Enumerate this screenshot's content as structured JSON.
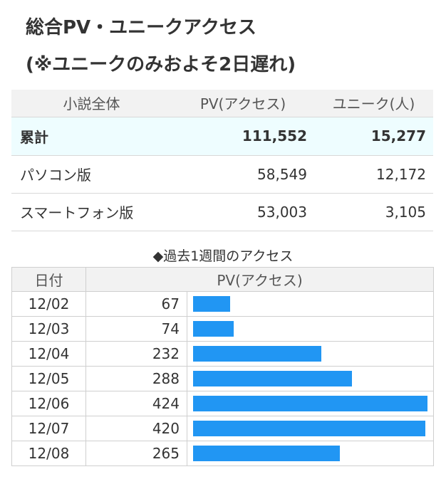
{
  "title": {
    "line1": "総合PV・ユニークアクセス",
    "line2": "(※ユニークのみおよそ2日遅れ)"
  },
  "summary": {
    "headers": [
      "小説全体",
      "PV(アクセス)",
      "ユニーク(人)"
    ],
    "rows": [
      {
        "label": "累計",
        "pv": "111,552",
        "unique": "15,277"
      },
      {
        "label": "パソコン版",
        "pv": "58,549",
        "unique": "12,172"
      },
      {
        "label": "スマートフォン版",
        "pv": "53,003",
        "unique": "3,105"
      }
    ]
  },
  "weekly": {
    "title": "◆過去1週間のアクセス",
    "headers": [
      "日付",
      "PV(アクセス)"
    ],
    "bar_color": "#2196f3",
    "max_pv": 424,
    "rows": [
      {
        "date": "12/02",
        "pv": "67"
      },
      {
        "date": "12/03",
        "pv": "74"
      },
      {
        "date": "12/04",
        "pv": "232"
      },
      {
        "date": "12/05",
        "pv": "288"
      },
      {
        "date": "12/06",
        "pv": "424"
      },
      {
        "date": "12/07",
        "pv": "420"
      },
      {
        "date": "12/08",
        "pv": "265"
      }
    ]
  }
}
